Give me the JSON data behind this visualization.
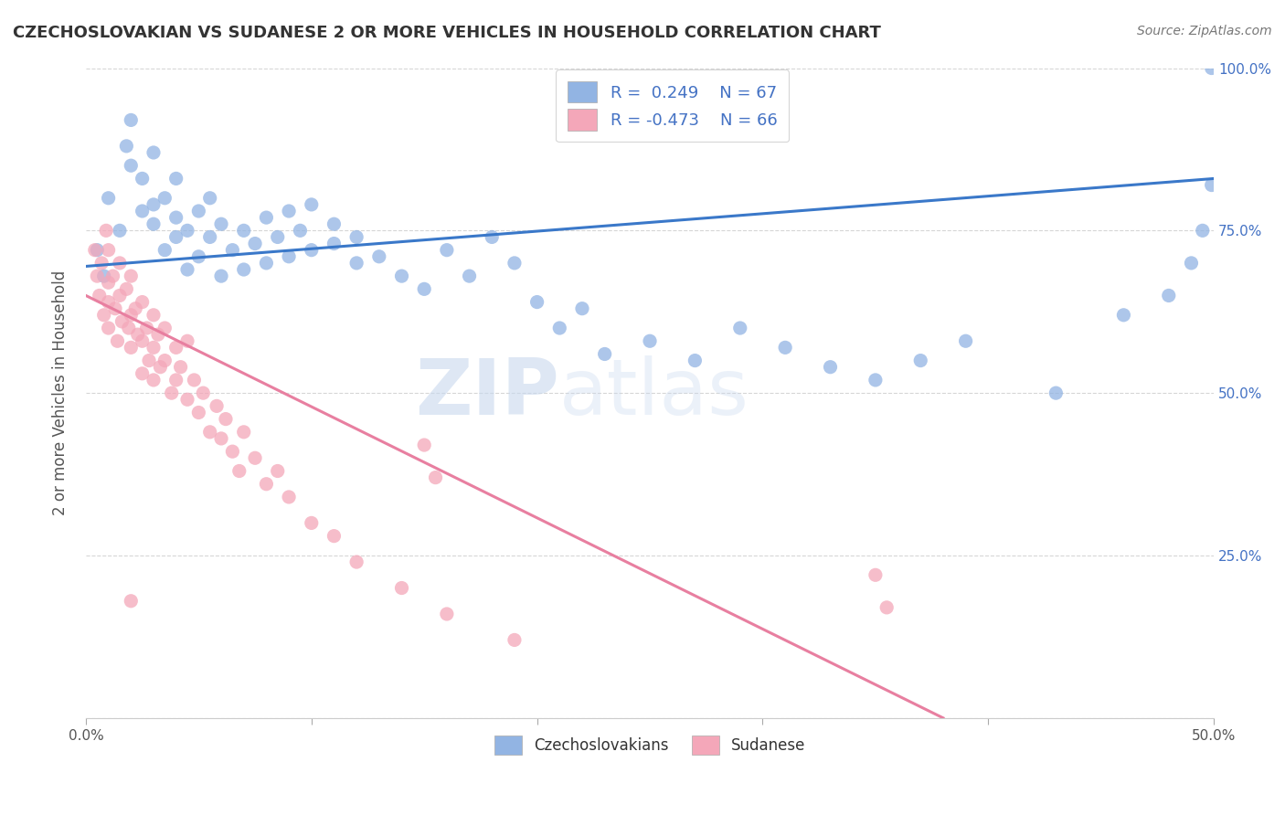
{
  "title": "CZECHOSLOVAKIAN VS SUDANESE 2 OR MORE VEHICLES IN HOUSEHOLD CORRELATION CHART",
  "source": "Source: ZipAtlas.com",
  "ylabel": "2 or more Vehicles in Household",
  "xmin": 0.0,
  "xmax": 0.5,
  "ymin": 0.0,
  "ymax": 1.0,
  "xtick_positions": [
    0.0,
    0.1,
    0.2,
    0.3,
    0.4,
    0.5
  ],
  "xtick_labels": [
    "0.0%",
    "",
    "",
    "",
    "",
    "50.0%"
  ],
  "yticks": [
    0.0,
    0.25,
    0.5,
    0.75,
    1.0
  ],
  "ytick_labels_right": [
    "",
    "25.0%",
    "50.0%",
    "75.0%",
    "100.0%"
  ],
  "blue_color": "#92b4e3",
  "pink_color": "#f4a7b9",
  "blue_line_color": "#3a78c9",
  "pink_line_color": "#e87fa0",
  "watermark_zip": "ZIP",
  "watermark_atlas": "atlas",
  "blue_trend_x": [
    0.0,
    0.5
  ],
  "blue_trend_y": [
    0.695,
    0.83
  ],
  "pink_trend_x": [
    0.0,
    0.38
  ],
  "pink_trend_y": [
    0.65,
    0.0
  ],
  "blue_dots_x": [
    0.005,
    0.008,
    0.01,
    0.015,
    0.018,
    0.02,
    0.02,
    0.025,
    0.025,
    0.03,
    0.03,
    0.03,
    0.035,
    0.035,
    0.04,
    0.04,
    0.04,
    0.045,
    0.045,
    0.05,
    0.05,
    0.055,
    0.055,
    0.06,
    0.06,
    0.065,
    0.07,
    0.07,
    0.075,
    0.08,
    0.08,
    0.085,
    0.09,
    0.09,
    0.095,
    0.1,
    0.1,
    0.11,
    0.11,
    0.12,
    0.12,
    0.13,
    0.14,
    0.15,
    0.16,
    0.17,
    0.18,
    0.19,
    0.2,
    0.21,
    0.22,
    0.23,
    0.25,
    0.27,
    0.29,
    0.31,
    0.33,
    0.35,
    0.37,
    0.39,
    0.43,
    0.46,
    0.48,
    0.49,
    0.495,
    0.499,
    0.499
  ],
  "blue_dots_y": [
    0.72,
    0.68,
    0.8,
    0.75,
    0.88,
    0.85,
    0.92,
    0.78,
    0.83,
    0.76,
    0.79,
    0.87,
    0.72,
    0.8,
    0.74,
    0.77,
    0.83,
    0.69,
    0.75,
    0.71,
    0.78,
    0.74,
    0.8,
    0.68,
    0.76,
    0.72,
    0.69,
    0.75,
    0.73,
    0.7,
    0.77,
    0.74,
    0.71,
    0.78,
    0.75,
    0.72,
    0.79,
    0.73,
    0.76,
    0.7,
    0.74,
    0.71,
    0.68,
    0.66,
    0.72,
    0.68,
    0.74,
    0.7,
    0.64,
    0.6,
    0.63,
    0.56,
    0.58,
    0.55,
    0.6,
    0.57,
    0.54,
    0.52,
    0.55,
    0.58,
    0.5,
    0.62,
    0.65,
    0.7,
    0.75,
    0.82,
    1.0
  ],
  "pink_dots_x": [
    0.004,
    0.005,
    0.006,
    0.007,
    0.008,
    0.009,
    0.01,
    0.01,
    0.01,
    0.01,
    0.012,
    0.013,
    0.014,
    0.015,
    0.015,
    0.016,
    0.018,
    0.019,
    0.02,
    0.02,
    0.02,
    0.022,
    0.023,
    0.025,
    0.025,
    0.027,
    0.028,
    0.03,
    0.03,
    0.03,
    0.032,
    0.033,
    0.035,
    0.035,
    0.038,
    0.04,
    0.04,
    0.042,
    0.045,
    0.045,
    0.048,
    0.05,
    0.052,
    0.055,
    0.058,
    0.06,
    0.062,
    0.065,
    0.068,
    0.07,
    0.075,
    0.08,
    0.085,
    0.09,
    0.1,
    0.11,
    0.12,
    0.14,
    0.16,
    0.19,
    0.02,
    0.025,
    0.15,
    0.155,
    0.35,
    0.355
  ],
  "pink_dots_y": [
    0.72,
    0.68,
    0.65,
    0.7,
    0.62,
    0.75,
    0.67,
    0.72,
    0.64,
    0.6,
    0.68,
    0.63,
    0.58,
    0.65,
    0.7,
    0.61,
    0.66,
    0.6,
    0.62,
    0.57,
    0.68,
    0.63,
    0.59,
    0.64,
    0.58,
    0.6,
    0.55,
    0.62,
    0.57,
    0.52,
    0.59,
    0.54,
    0.6,
    0.55,
    0.5,
    0.57,
    0.52,
    0.54,
    0.58,
    0.49,
    0.52,
    0.47,
    0.5,
    0.44,
    0.48,
    0.43,
    0.46,
    0.41,
    0.38,
    0.44,
    0.4,
    0.36,
    0.38,
    0.34,
    0.3,
    0.28,
    0.24,
    0.2,
    0.16,
    0.12,
    0.18,
    0.53,
    0.42,
    0.37,
    0.22,
    0.17
  ]
}
